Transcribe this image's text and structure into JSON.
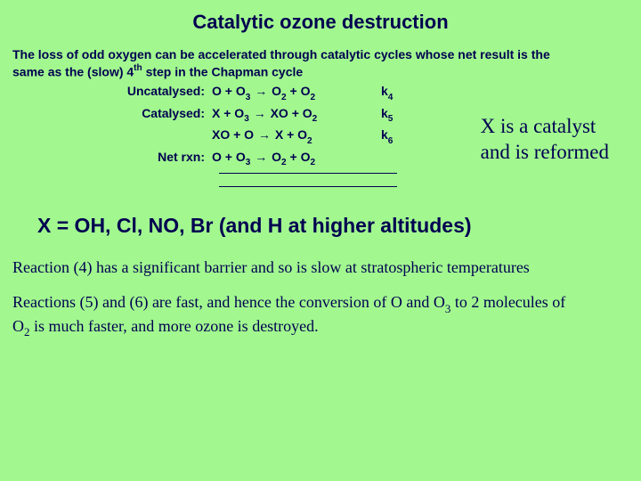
{
  "background_color": "#a2f88f",
  "text_color": "#000050",
  "title": "Catalytic ozone destruction",
  "intro_line1": "The loss of odd oxygen can be accelerated through catalytic cycles whose net result is the",
  "intro_line2_a": "same as the (slow) 4",
  "intro_line2_sup": "th",
  "intro_line2_b": " step in the Chapman cycle",
  "rxn": {
    "uncat_label": "Uncatalysed:",
    "uncat_eq_a": "O + O",
    "uncat_eq_sub1": "3",
    "uncat_arrow": "→",
    "uncat_eq_b": " O",
    "uncat_eq_sub2": "2",
    "uncat_eq_c": " + O",
    "uncat_eq_sub3": "2",
    "uncat_k": "k",
    "uncat_k_sub": "4",
    "cat_label": "Catalysed:",
    "cat1_a": "X + O",
    "cat1_sub1": "3",
    "cat1_arrow": "→",
    "cat1_b": " XO + O",
    "cat1_sub2": "2",
    "cat1_k": "k",
    "cat1_k_sub": "5",
    "cat2_a": "XO + O ",
    "cat2_arrow": "→",
    "cat2_b": " X + O",
    "cat2_sub": "2",
    "cat2_k": "k",
    "cat2_k_sub": "6",
    "net_label": "Net rxn:",
    "net_a": "O + O",
    "net_sub1": "3",
    "net_arrow": "→",
    "net_b": " O",
    "net_sub2": "2",
    "net_c": " + O",
    "net_sub3": "2"
  },
  "catalyst_note_line1": "X is a catalyst",
  "catalyst_note_line2": "and is reformed",
  "x_list": "X = OH, Cl, NO, Br  (and H at higher altitudes)",
  "para1": "Reaction (4) has a significant barrier and so is slow at stratospheric temperatures",
  "para2_a": "Reactions (5) and (6) are fast, and hence the conversion of O and O",
  "para2_sub1": "3",
  "para2_b": " to 2 molecules of",
  "para2_c": "O",
  "para2_sub2": "2",
  "para2_d": " is much faster, and more ozone is destroyed."
}
